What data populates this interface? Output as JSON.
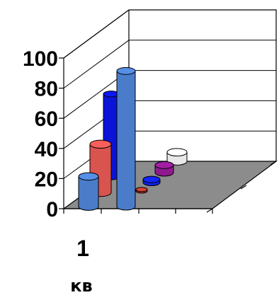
{
  "chart_data": {
    "type": "bar",
    "style": "3d-cylinder",
    "categories": [
      "1 кв"
    ],
    "category_lines": [
      "1",
      "кв"
    ],
    "ylim": [
      0,
      100
    ],
    "yticks": [
      "100",
      "80",
      "60",
      "40",
      "20",
      "0"
    ],
    "grid": true,
    "legend": "none",
    "series": [
      {
        "values": [
          20
        ],
        "color": "#4a7cc9"
      },
      {
        "values": [
          32
        ],
        "color": "#d9534f"
      },
      {
        "values": [
          55
        ],
        "color": "#0a14d8"
      },
      {
        "values": [
          90
        ],
        "color": "#4a7cc9"
      },
      {
        "values": [
          1
        ],
        "color": "#c0392b"
      },
      {
        "values": [
          2
        ],
        "color": "#1020e0"
      },
      {
        "values": [
          5
        ],
        "color": "#8e1a8e"
      },
      {
        "values": [
          6
        ],
        "color": "#e8e8e8"
      }
    ],
    "floor_color": "#8c8c8c"
  }
}
